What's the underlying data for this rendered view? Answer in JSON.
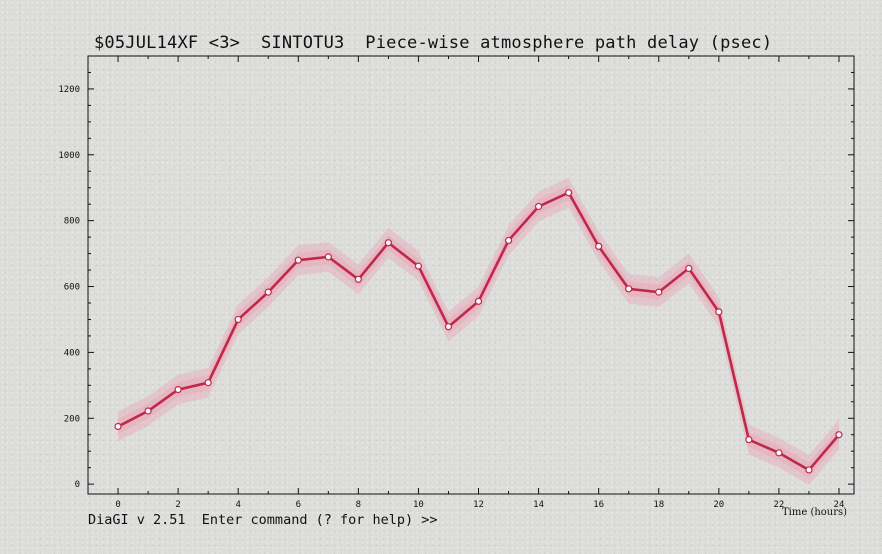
{
  "header": {
    "title": "$05JUL14XF <3>  SINTOTU3  Piece-wise atmosphere path delay (psec)"
  },
  "footer": {
    "prompt": "DiaGI v 2.51  Enter command (? for help) >>"
  },
  "colors": {
    "line": "#c0284a",
    "band": "#e8a7b8",
    "marker_fill": "#ffffff",
    "background": "#dcdcda"
  },
  "chart_data": {
    "type": "line",
    "title": "$05JUL14XF <3>  SINTOTU3  Piece-wise atmosphere path delay (psec)",
    "xlabel": "Time (hours)",
    "ylabel": "",
    "xlim": [
      -1,
      24.5
    ],
    "ylim": [
      -30,
      1300
    ],
    "x_ticks": [
      0,
      2,
      4,
      6,
      8,
      10,
      12,
      14,
      16,
      18,
      20,
      22,
      24
    ],
    "x_tick_labels": [
      "0",
      "2",
      "4",
      "6",
      "8",
      "10",
      "12",
      "14",
      "16",
      "18",
      "20",
      "22",
      "24"
    ],
    "y_ticks": [
      0,
      200,
      400,
      600,
      800,
      1000,
      1200
    ],
    "y_tick_labels": [
      "0",
      "200",
      "400",
      "600",
      "800",
      "1000",
      "1200"
    ],
    "grid": false,
    "series": [
      {
        "x": [
          0,
          1,
          2,
          3,
          4,
          5,
          6,
          7,
          8,
          9,
          10,
          11,
          12,
          13,
          14,
          15,
          16,
          17,
          18,
          19,
          20,
          21,
          22,
          23,
          24
        ],
        "values": [
          175,
          222,
          287,
          308,
          500,
          583,
          680,
          690,
          622,
          733,
          662,
          478,
          555,
          740,
          843,
          885,
          722,
          593,
          583,
          655,
          523,
          135,
          95,
          43,
          150
        ],
        "error": 45
      }
    ]
  }
}
